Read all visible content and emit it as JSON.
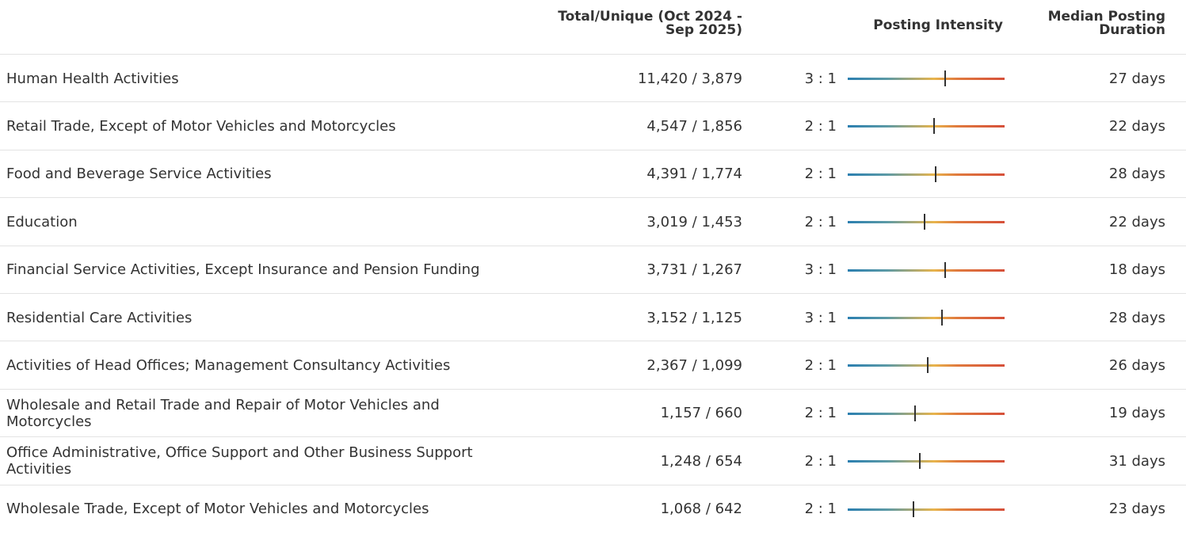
{
  "table": {
    "headers": {
      "total": "Total/Unique (Oct 2024 - Sep 2025)",
      "intensity": "Posting Intensity",
      "duration": "Median Posting Duration"
    },
    "intensity_scale": [
      0,
      1
    ],
    "rows": [
      {
        "name": "Human Health Activities",
        "total": "11,420 / 3,879",
        "ratio": "3 : 1",
        "intensity": 0.62,
        "duration": "27 days"
      },
      {
        "name": "Retail Trade, Except of Motor Vehicles and Motorcycles",
        "total": "4,547 / 1,856",
        "ratio": "2 : 1",
        "intensity": 0.55,
        "duration": "22 days"
      },
      {
        "name": "Food and Beverage Service Activities",
        "total": "4,391 / 1,774",
        "ratio": "2 : 1",
        "intensity": 0.56,
        "duration": "28 days"
      },
      {
        "name": "Education",
        "total": "3,019 / 1,453",
        "ratio": "2 : 1",
        "intensity": 0.49,
        "duration": "22 days"
      },
      {
        "name": "Financial Service Activities, Except Insurance and Pension Funding",
        "total": "3,731 / 1,267",
        "ratio": "3 : 1",
        "intensity": 0.62,
        "duration": "18 days"
      },
      {
        "name": "Residential Care Activities",
        "total": "3,152 / 1,125",
        "ratio": "3 : 1",
        "intensity": 0.6,
        "duration": "28 days"
      },
      {
        "name": "Activities of Head Offices; Management Consultancy Activities",
        "total": "2,367 / 1,099",
        "ratio": "2 : 1",
        "intensity": 0.51,
        "duration": "26 days"
      },
      {
        "name": "Wholesale and Retail Trade and Repair of Motor Vehicles and Motorcycles",
        "total": "1,157 / 660",
        "ratio": "2 : 1",
        "intensity": 0.43,
        "duration": "19 days"
      },
      {
        "name": "Office Administrative, Office Support and Other Business Support Activities",
        "total": "1,248 / 654",
        "ratio": "2 : 1",
        "intensity": 0.46,
        "duration": "31 days"
      },
      {
        "name": "Wholesale Trade, Except of Motor Vehicles and Motorcycles",
        "total": "1,068 / 642",
        "ratio": "2 : 1",
        "intensity": 0.42,
        "duration": "23 days"
      }
    ]
  }
}
